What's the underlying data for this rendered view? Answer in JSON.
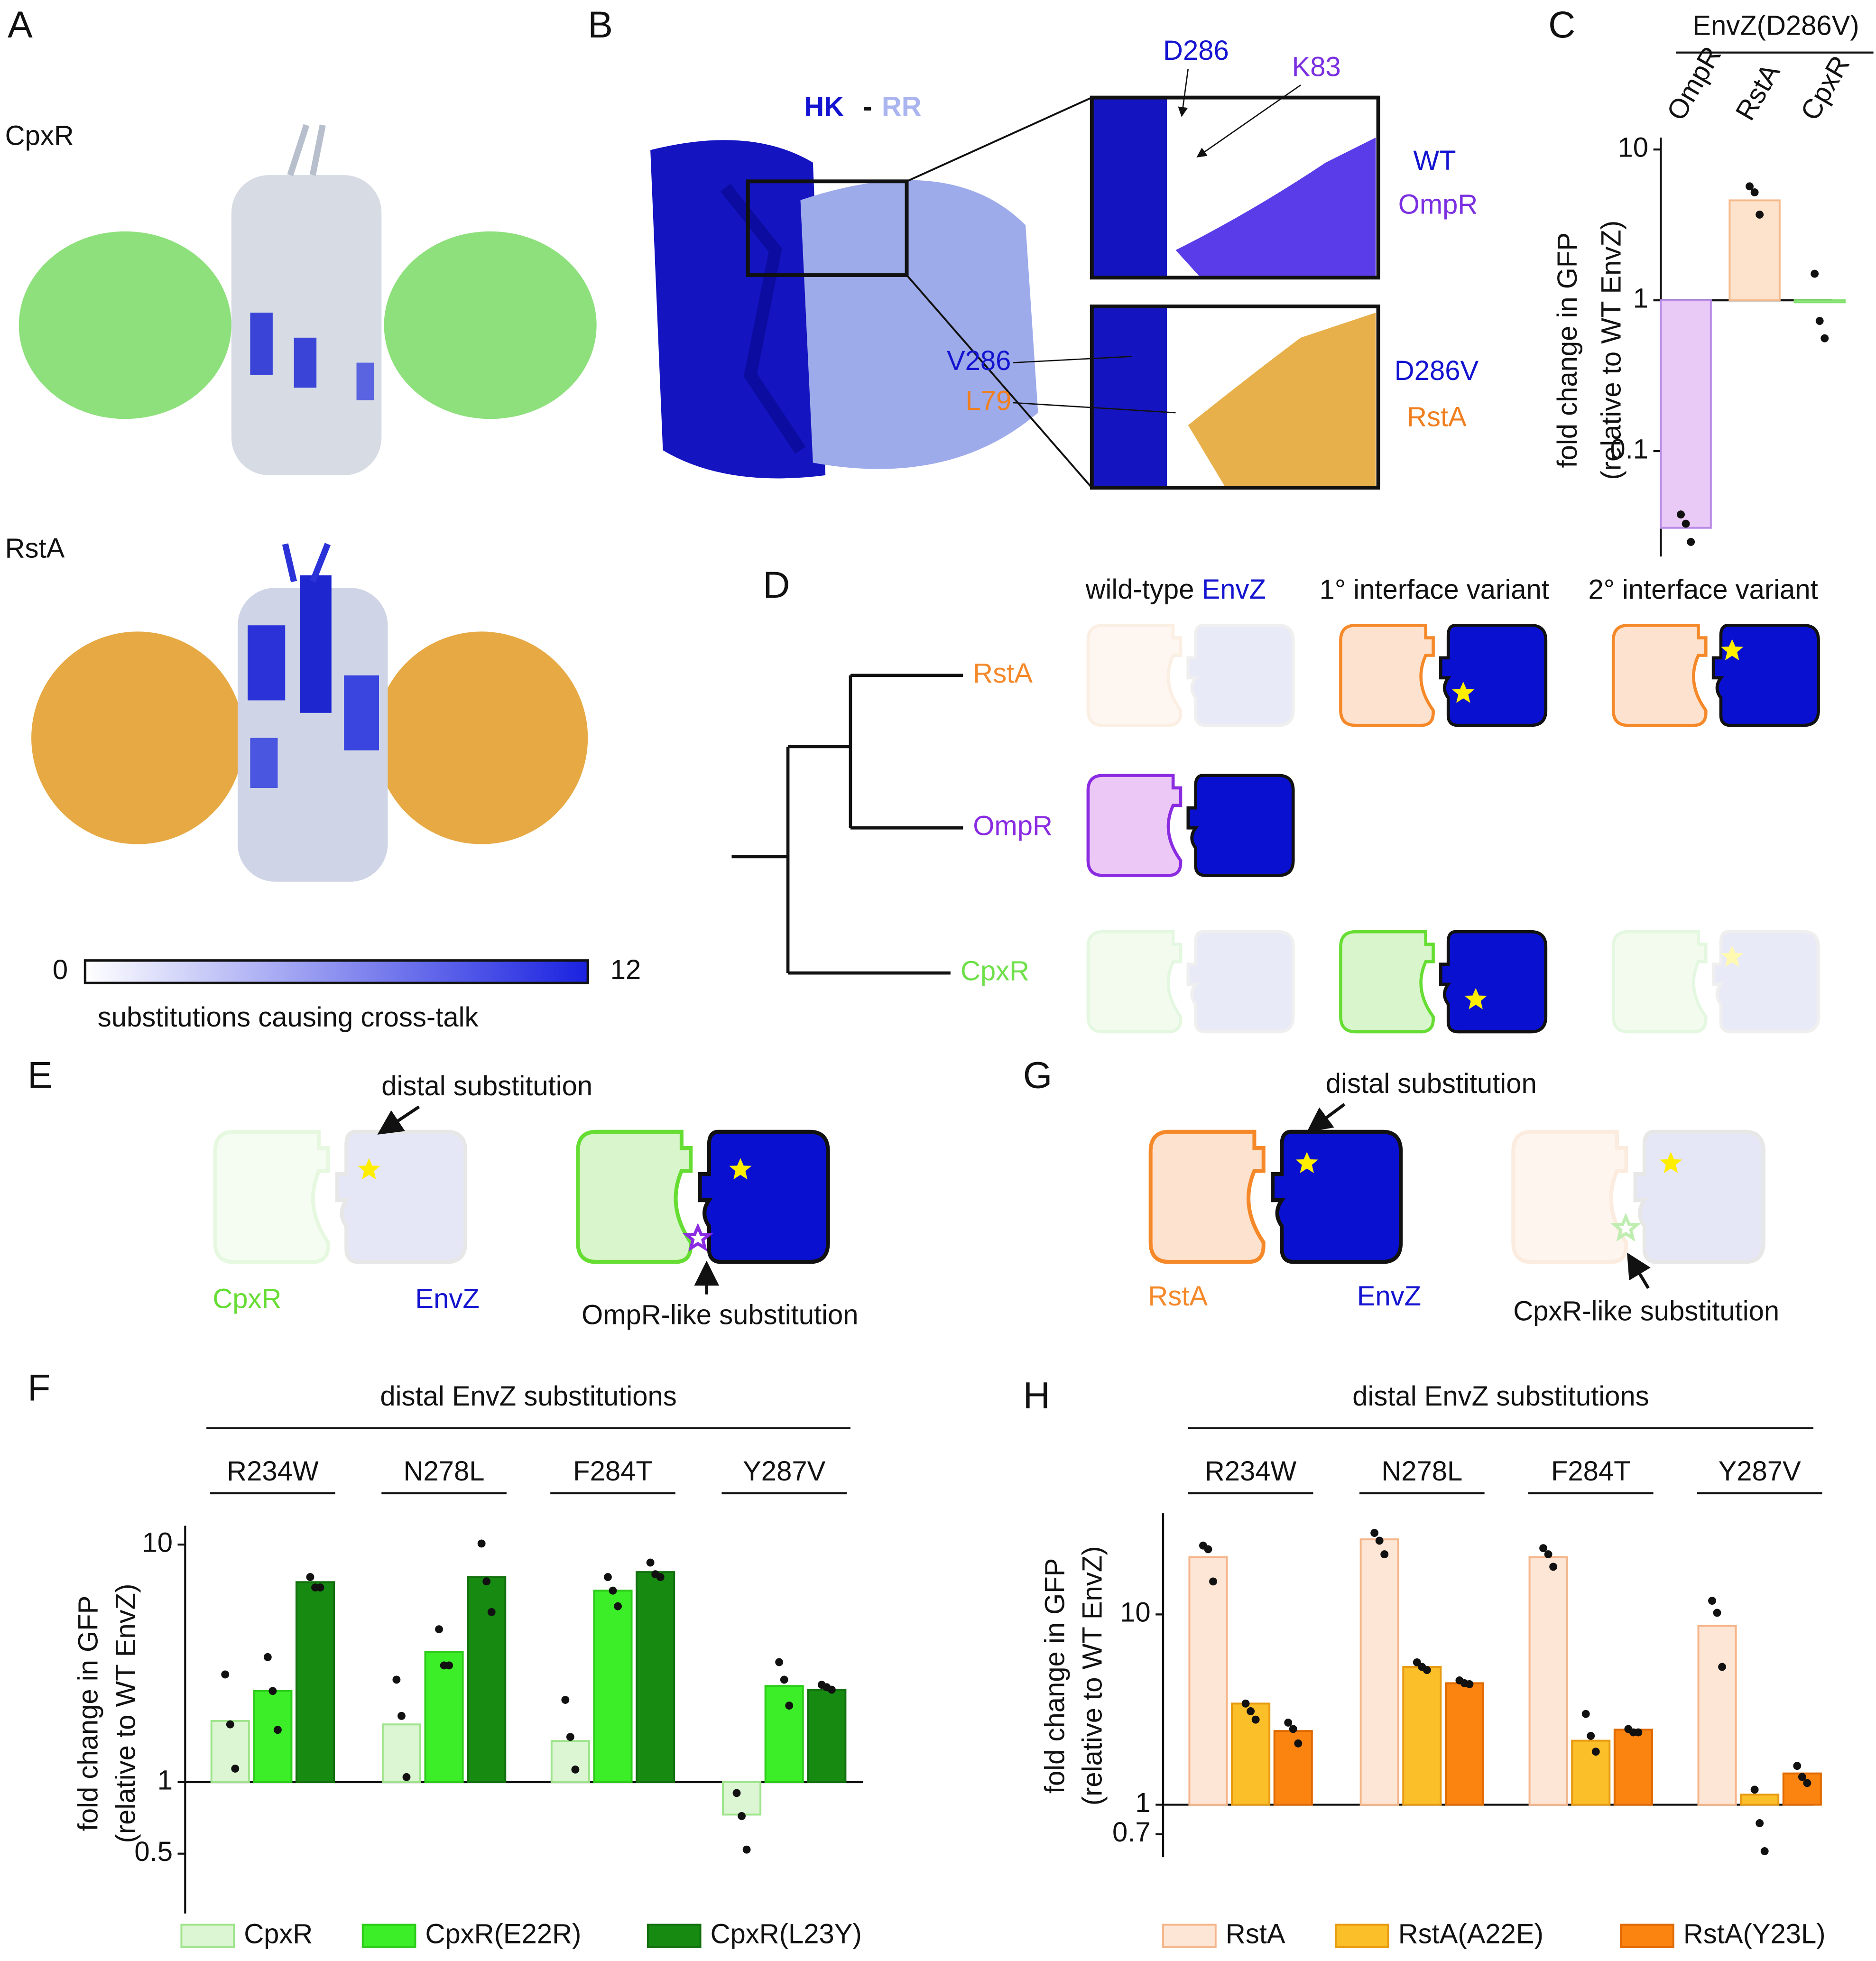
{
  "panel_labels": {
    "a": "A",
    "b": "B",
    "c": "C",
    "d": "D",
    "e": "E",
    "f": "F",
    "g": "G",
    "h": "H"
  },
  "panel_a": {
    "top": "CpxR",
    "bottom": "RstA",
    "scale_min": 0,
    "scale_max": 12,
    "scale_caption": "substitutions causing cross-talk"
  },
  "panel_b": {
    "hk": "HK",
    "dash": "-",
    "rr": "RR",
    "top_residue_hk": "D286",
    "top_residue_rr": "K83",
    "top_hk": "WT",
    "top_rr": "OmpR",
    "bottom_residue_hk": "V286",
    "bottom_residue_rr": "L79",
    "bottom_hk": "D286V",
    "bottom_rr": "RstA"
  },
  "panel_d": {
    "wild_type": "wild-type",
    "envz": "EnvZ",
    "primary": "1° interface variant",
    "secondary": "2° interface variant",
    "rows": [
      "RstA",
      "OmpR",
      "CpxR"
    ]
  },
  "panel_e": {
    "top_note": "distal substitution",
    "rr": "CpxR",
    "hk": "EnvZ",
    "bottom_note": "OmpR-like substitution"
  },
  "panel_g": {
    "top_note": "distal substitution",
    "rr": "RstA",
    "hk": "EnvZ",
    "bottom_note": "CpxR-like substitution"
  },
  "chart_data": [
    {
      "type": "bar",
      "log_scale": true,
      "group_title": "EnvZ(D286V)",
      "ylabel": [
        "fold change in GFP",
        "(relative to WT EnvZ)"
      ],
      "categories": [
        "OmpR",
        "RstA",
        "CpxR"
      ],
      "values": [
        0.031,
        4.6,
        0.97
      ],
      "colors": [
        "#e9c9f6",
        "#fde3cc",
        "#d9f6cf"
      ],
      "edge_colors": [
        "#b98ae6",
        "#f5b98a",
        "#7ee06a"
      ],
      "points": [
        [
          0.038,
          0.033,
          0.025
        ],
        [
          5.7,
          5.2,
          3.7
        ],
        [
          1.5,
          0.73,
          0.56
        ]
      ],
      "ylim": [
        0.02,
        12
      ],
      "yticks": [
        0.1,
        1,
        10
      ]
    },
    {
      "type": "grouped_bar",
      "log_scale": true,
      "title": "distal EnvZ substitutions",
      "ylabel": [
        "fold change in GFP",
        "(relative to WT EnvZ)"
      ],
      "categories": [
        "R234W",
        "N278L",
        "F284T",
        "Y287V"
      ],
      "series": [
        {
          "name": "CpxR",
          "color": "#dcf6d4",
          "edge": "#9fe48c",
          "values": [
            1.81,
            1.75,
            1.49,
            0.73
          ],
          "points": [
            [
              2.84,
              1.75,
              1.14
            ],
            [
              2.7,
              1.9,
              1.05
            ],
            [
              2.22,
              1.55,
              1.13
            ],
            [
              0.9,
              0.72,
              0.52
            ]
          ]
        },
        {
          "name": "CpxR(E22R)",
          "color": "#3cee28",
          "edge": "#2ccc1a",
          "values": [
            2.42,
            3.53,
            6.4,
            2.54
          ],
          "points": [
            [
              3.36,
              2.42,
              1.66
            ],
            [
              4.4,
              3.1,
              3.1
            ],
            [
              7.3,
              6.4,
              5.5
            ],
            [
              3.2,
              2.7,
              2.1
            ]
          ]
        },
        {
          "name": "CpxR(L23Y)",
          "color": "#178a12",
          "edge": "#12700e",
          "values": [
            6.95,
            7.3,
            7.66,
            2.45
          ],
          "points": [
            [
              7.3,
              6.6,
              6.6
            ],
            [
              10.1,
              7.0,
              5.2
            ],
            [
              8.4,
              7.5,
              7.3
            ],
            [
              2.57,
              2.51,
              2.45
            ]
          ]
        }
      ],
      "ylim": [
        0.28,
        12
      ],
      "yticks": [
        0.5,
        1,
        10
      ]
    },
    {
      "type": "grouped_bar",
      "log_scale": true,
      "title": "distal EnvZ substitutions",
      "ylabel": [
        "fold change in GFP",
        "(relative to WT EnvZ)"
      ],
      "categories": [
        "R234W",
        "N278L",
        "F284T",
        "Y287V"
      ],
      "series": [
        {
          "name": "RstA",
          "color": "#fde6d6",
          "edge": "#f5b58a",
          "values": [
            20,
            24.8,
            20,
            8.7
          ],
          "points": [
            [
              23,
              22,
              14.9
            ],
            [
              26.8,
              24.4,
              20.7
            ],
            [
              22.3,
              20.7,
              17.8
            ],
            [
              11.8,
              10.2,
              5.3
            ]
          ]
        },
        {
          "name": "RstA(A22E)",
          "color": "#fbbf2a",
          "edge": "#e89a10",
          "values": [
            3.4,
            5.3,
            2.17,
            1.13
          ],
          "points": [
            [
              3.4,
              3.1,
              2.8
            ],
            [
              5.6,
              5.3,
              5.1
            ],
            [
              3.0,
              2.3,
              1.9
            ],
            [
              1.2,
              0.8,
              0.57
            ]
          ]
        },
        {
          "name": "RstA(Y23L)",
          "color": "#fb8410",
          "edge": "#e06a00",
          "values": [
            2.44,
            4.35,
            2.48,
            1.46
          ],
          "points": [
            [
              2.7,
              2.5,
              2.1
            ],
            [
              4.5,
              4.35,
              4.3
            ],
            [
              2.5,
              2.4,
              2.4
            ],
            [
              1.6,
              1.4,
              1.3
            ]
          ]
        }
      ],
      "ylim": [
        0.53,
        34
      ],
      "yticks": [
        0.7,
        1,
        10
      ]
    }
  ]
}
